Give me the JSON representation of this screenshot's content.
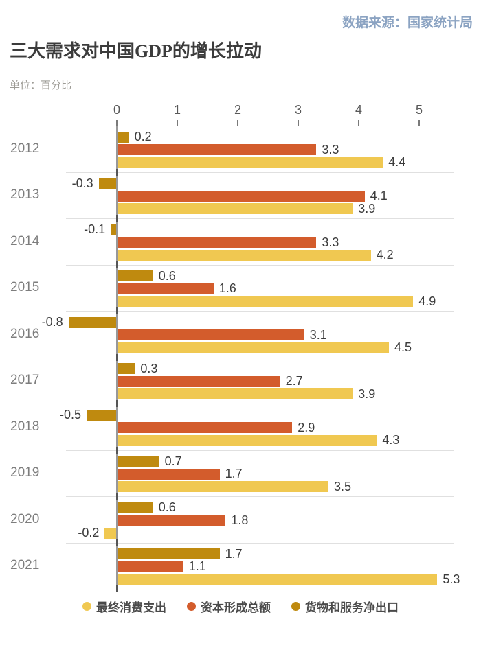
{
  "header": {
    "source": "数据来源：国家统计局",
    "title": "三大需求对中国GDP的增长拉动",
    "unit_label": "单位：百分比"
  },
  "chart_data": {
    "type": "bar",
    "orientation": "horizontal",
    "title": "三大需求对中国GDP的增长拉动",
    "unit": "百分比",
    "source": "数据来源：国家统计局",
    "x_ticks": [
      0,
      1,
      2,
      3,
      4,
      5
    ],
    "xlim": [
      -0.85,
      5.6
    ],
    "grid": "year-group-separators",
    "legend_position": "bottom-center",
    "categories": [
      "2012",
      "2013",
      "2014",
      "2015",
      "2016",
      "2017",
      "2018",
      "2019",
      "2020",
      "2021"
    ],
    "series": [
      {
        "key": "consumption",
        "name": "最终消费支出",
        "color": "#f0c851",
        "values": [
          4.4,
          3.9,
          4.2,
          4.9,
          4.5,
          3.9,
          4.3,
          3.5,
          -0.2,
          5.3
        ]
      },
      {
        "key": "capital-formation",
        "name": "资本形成总额",
        "color": "#d35c2c",
        "values": [
          3.3,
          4.1,
          3.3,
          1.6,
          3.1,
          2.7,
          2.9,
          1.7,
          1.8,
          1.1
        ]
      },
      {
        "key": "net-exports",
        "name": "货物和服务净出口",
        "color": "#bf8a0f",
        "values": [
          0.2,
          -0.3,
          -0.1,
          0.6,
          -0.8,
          0.3,
          -0.5,
          0.7,
          0.6,
          1.7
        ]
      }
    ],
    "bar_draw_order_top_to_bottom": [
      "net-exports",
      "capital-formation",
      "consumption"
    ],
    "colors": {
      "consumption": "#f0c851",
      "capital_formation": "#d35c2c",
      "net_exports": "#bf8a0f",
      "source_text": "#8ba3c2",
      "title_text": "#3c3c3c",
      "unit_text": "#9d9b95",
      "year_text": "#7d7d7d",
      "value_text": "#3c3c3c",
      "axis_text": "#585858"
    }
  }
}
